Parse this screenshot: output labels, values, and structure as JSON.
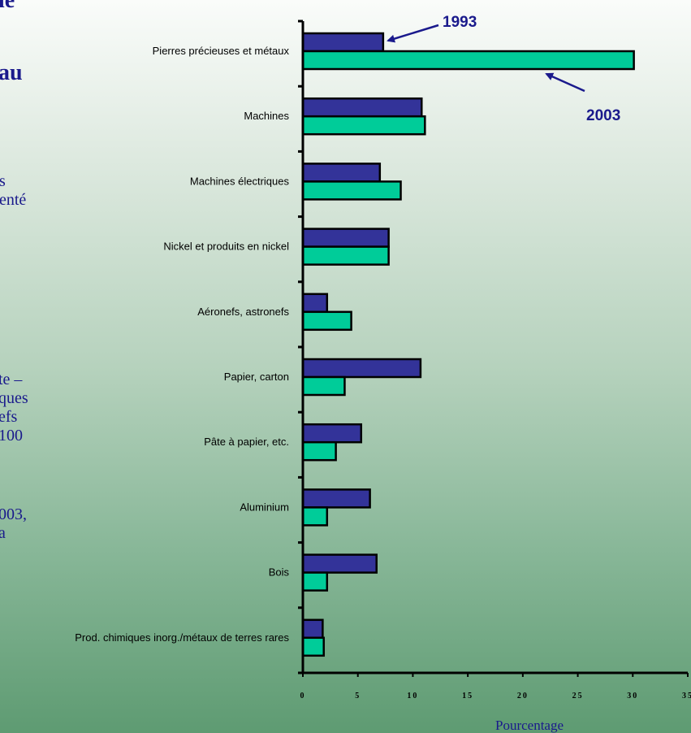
{
  "side_text": {
    "line1": "le",
    "line2": "au",
    "line3": "s\nenté",
    "line4": "te –\nques\nefs\n100",
    "line5": "003,\na"
  },
  "chart_data": {
    "type": "bar",
    "orientation": "horizontal",
    "categories": [
      "Pierres précieuses et métaux",
      "Machines",
      "Machines électriques",
      "Nickel et produits en nickel",
      "Aéronefs, astronefs",
      "Papier, carton",
      "Pâte à papier, etc.",
      "Aluminium",
      "Bois",
      "Prod. chimiques inorg./métaux de terres rares"
    ],
    "series": [
      {
        "name": "1993",
        "color": "#333399",
        "values": [
          7.3,
          10.8,
          7.0,
          7.8,
          2.2,
          10.7,
          5.3,
          6.1,
          6.7,
          1.8
        ]
      },
      {
        "name": "2003",
        "color": "#00cc99",
        "values": [
          30.1,
          11.1,
          8.9,
          7.8,
          4.4,
          3.8,
          3.0,
          2.2,
          2.2,
          1.9
        ]
      }
    ],
    "xlim": [
      0,
      35
    ],
    "xticks": [
      "0",
      "5",
      "10",
      "15",
      "20",
      "25",
      "30",
      "35"
    ],
    "xlabel": "Pourcentage",
    "annotations": [
      "1993",
      "2003"
    ],
    "grid": false,
    "legend": "none"
  }
}
